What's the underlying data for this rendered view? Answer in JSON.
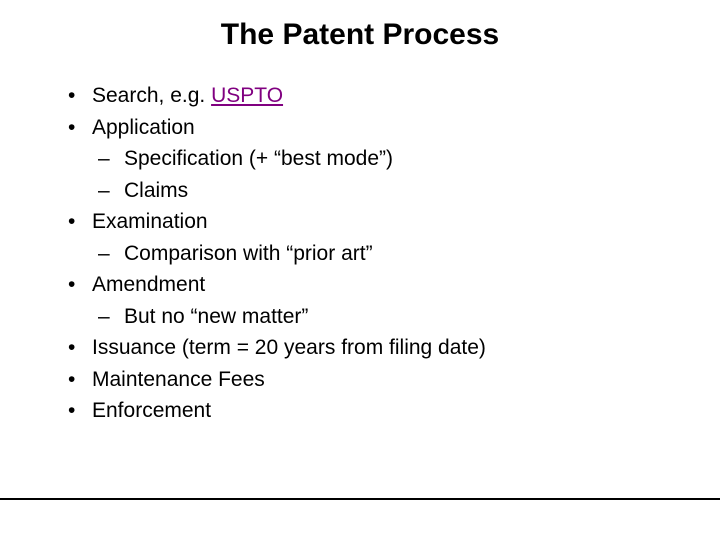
{
  "title": "The Patent Process",
  "items": [
    {
      "level": 1,
      "prefix": "Search, e.g. ",
      "link": "USPTO"
    },
    {
      "level": 1,
      "text": "Application"
    },
    {
      "level": 2,
      "text": "Specification  (+ “best mode”)"
    },
    {
      "level": 2,
      "text": "Claims"
    },
    {
      "level": 1,
      "text": "Examination"
    },
    {
      "level": 2,
      "text": "Comparison with “prior art”"
    },
    {
      "level": 1,
      "text": "Amendment"
    },
    {
      "level": 2,
      "text": "But no “new matter”"
    },
    {
      "level": 1,
      "text": "Issuance (term = 20 years from filing date)"
    },
    {
      "level": 1,
      "text": "Maintenance Fees"
    },
    {
      "level": 1,
      "text": "Enforcement"
    }
  ],
  "styling": {
    "background_color": "#ffffff",
    "title_color": "#000000",
    "title_fontsize": 30,
    "title_fontweight": "bold",
    "body_color": "#000000",
    "body_fontsize": 21,
    "link_color": "#800080",
    "divider_color": "#000000",
    "font_family": "Arial"
  }
}
